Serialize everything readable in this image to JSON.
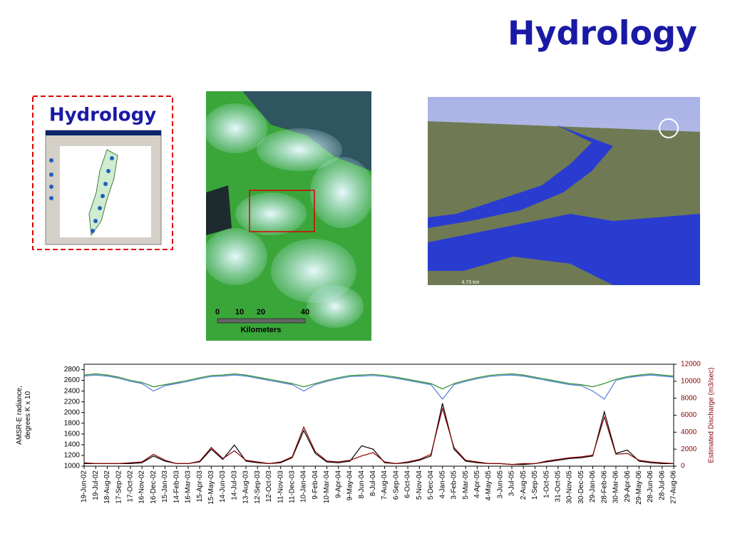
{
  "title": "Hydrology",
  "inset": {
    "title": "Hydrology"
  },
  "satellite": {
    "scale_labels": [
      "0",
      "10",
      "20",
      "40"
    ],
    "scale_unit": "Kilometers"
  },
  "terrain": {
    "scale": "4.73 km"
  },
  "chart_data": {
    "type": "line",
    "ylabel": [
      "AMSR-E radiance,",
      "degrees K x 10"
    ],
    "y2label": "Estimated Discharge (m3/sec)",
    "categories": [
      "19-Jun-02",
      "19-Jul-02",
      "18-Aug-02",
      "17-Sep-02",
      "17-Oct-02",
      "16-Nov-02",
      "16-Dec-02",
      "15-Jan-03",
      "14-Feb-03",
      "16-Mar-03",
      "15-Apr-03",
      "15-May-03",
      "14-Jun-03",
      "14-Jul-03",
      "13-Aug-03",
      "12-Sep-03",
      "12-Oct-03",
      "11-Nov-03",
      "11-Dec-03",
      "10-Jan-04",
      "9-Feb-04",
      "10-Mar-04",
      "9-Apr-04",
      "9-May-04",
      "8-Jun-04",
      "8-Jul-04",
      "7-Aug-04",
      "6-Sep-04",
      "6-Oct-04",
      "5-Nov-04",
      "5-Dec-04",
      "4-Jan-05",
      "3-Feb-05",
      "5-Mar-05",
      "4-Apr-05",
      "4-May-05",
      "3-Jun-05",
      "3-Jul-05",
      "2-Aug-05",
      "1-Sep-05",
      "1-Oct-05",
      "31-Oct-05",
      "30-Nov-05",
      "30-Dec-05",
      "29-Jan-06",
      "28-Feb-06",
      "30-Mar-06",
      "29-Apr-06",
      "29-May-06",
      "28-Jun-06",
      "28-Jul-06",
      "27-Aug-06"
    ],
    "series": [
      {
        "color": "#2e8b2e",
        "values": [
          2700,
          2720,
          2700,
          2660,
          2600,
          2560,
          2480,
          2520,
          2560,
          2600,
          2650,
          2690,
          2700,
          2720,
          2700,
          2660,
          2620,
          2580,
          2540,
          2480,
          2540,
          2600,
          2650,
          2690,
          2700,
          2710,
          2690,
          2660,
          2620,
          2580,
          2540,
          2440,
          2540,
          2600,
          2650,
          2690,
          2710,
          2720,
          2700,
          2660,
          2620,
          2580,
          2540,
          2520,
          2480,
          2540,
          2620,
          2670,
          2700,
          2720,
          2700,
          2680
        ]
      },
      {
        "color": "#4a7fd4",
        "values": [
          2680,
          2700,
          2680,
          2640,
          2580,
          2540,
          2400,
          2500,
          2540,
          2580,
          2630,
          2670,
          2680,
          2700,
          2680,
          2640,
          2600,
          2560,
          2520,
          2400,
          2520,
          2580,
          2630,
          2670,
          2680,
          2690,
          2670,
          2640,
          2600,
          2560,
          2520,
          2250,
          2520,
          2580,
          2630,
          2670,
          2690,
          2700,
          2680,
          2640,
          2600,
          2560,
          2520,
          2500,
          2400,
          2250,
          2600,
          2650,
          2680,
          2700,
          2680,
          2660
        ]
      },
      {
        "color": "#000000",
        "axis": "y2",
        "values": [
          300,
          300,
          300,
          300,
          300,
          400,
          1200,
          600,
          300,
          300,
          500,
          2000,
          800,
          2500,
          600,
          400,
          300,
          400,
          1000,
          4200,
          1500,
          500,
          400,
          600,
          2400,
          2000,
          400,
          300,
          400,
          700,
          1200,
          7400,
          2000,
          600,
          400,
          300,
          300,
          200,
          200,
          300,
          500,
          700,
          900,
          1000,
          1200,
          6400,
          1500,
          1900,
          600,
          400,
          300,
          300
        ]
      },
      {
        "color": "#8b0000",
        "axis": "y2",
        "values": [
          400,
          300,
          300,
          300,
          400,
          500,
          1400,
          700,
          300,
          300,
          600,
          2200,
          900,
          1800,
          700,
          500,
          300,
          500,
          1100,
          4600,
          1700,
          600,
          500,
          700,
          1200,
          1600,
          500,
          300,
          500,
          800,
          1400,
          6800,
          2200,
          700,
          500,
          300,
          300,
          200,
          300,
          300,
          600,
          800,
          1000,
          1100,
          1300,
          5800,
          1400,
          1500,
          700,
          500,
          400,
          300
        ]
      }
    ],
    "ylim": [
      1000,
      2900
    ],
    "yticks": [
      1000,
      1200,
      1400,
      1600,
      1800,
      2000,
      2200,
      2400,
      2600,
      2800
    ],
    "y2lim": [
      0,
      12000
    ],
    "y2ticks": [
      0,
      2000,
      4000,
      6000,
      8000,
      10000,
      12000
    ],
    "y2color": "#8b0000"
  }
}
